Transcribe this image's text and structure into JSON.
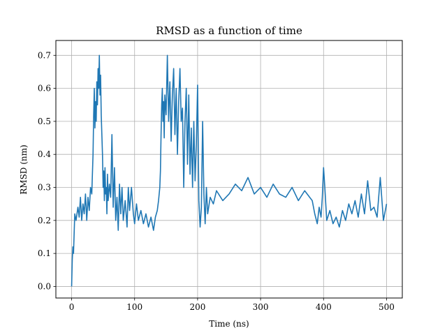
{
  "chart_data": {
    "type": "line",
    "title": "RMSD as a function of time",
    "xlabel": "Time (ns)",
    "ylabel": "RMSD (nm)",
    "xlim": [
      -25,
      525
    ],
    "ylim": [
      -0.035,
      0.745
    ],
    "xticks": [
      0,
      100,
      200,
      300,
      400,
      500
    ],
    "yticks": [
      0.0,
      0.1,
      0.2,
      0.3,
      0.4,
      0.5,
      0.6,
      0.7
    ],
    "xtick_labels": [
      "0",
      "100",
      "200",
      "300",
      "400",
      "500"
    ],
    "ytick_labels": [
      "0.0",
      "0.1",
      "0.2",
      "0.3",
      "0.4",
      "0.5",
      "0.6",
      "0.7"
    ],
    "grid": true,
    "series": [
      {
        "color": "#1f77b4",
        "x": [
          0,
          1,
          2,
          3,
          4,
          5,
          7,
          10,
          12,
          14,
          16,
          18,
          20,
          22,
          24,
          26,
          28,
          30,
          32,
          34,
          35,
          36,
          37,
          38,
          39,
          40,
          41,
          42,
          43,
          44,
          45,
          46,
          47,
          48,
          49,
          50,
          51,
          52,
          53,
          54,
          55,
          56,
          57,
          58,
          60,
          62,
          64,
          66,
          68,
          70,
          72,
          74,
          76,
          78,
          80,
          82,
          85,
          88,
          90,
          92,
          95,
          98,
          100,
          103,
          106,
          110,
          114,
          118,
          122,
          126,
          130,
          133,
          136,
          138,
          140,
          141,
          142,
          143,
          144,
          145,
          146,
          147,
          148,
          150,
          152,
          154,
          156,
          158,
          160,
          162,
          164,
          166,
          168,
          170,
          172,
          174,
          176,
          178,
          180,
          182,
          184,
          186,
          188,
          190,
          192,
          194,
          196,
          198,
          200,
          202,
          204,
          206,
          208,
          210,
          212,
          214,
          216,
          220,
          225,
          230,
          240,
          250,
          260,
          270,
          280,
          290,
          300,
          310,
          320,
          330,
          340,
          350,
          360,
          370,
          378,
          382,
          386,
          390,
          393,
          396,
          398,
          400,
          402,
          405,
          410,
          415,
          420,
          425,
          430,
          435,
          440,
          445,
          450,
          455,
          460,
          465,
          470,
          475,
          480,
          485,
          490,
          495,
          500
        ],
        "y": [
          0.0,
          0.08,
          0.12,
          0.1,
          0.16,
          0.22,
          0.2,
          0.24,
          0.21,
          0.27,
          0.2,
          0.25,
          0.22,
          0.28,
          0.2,
          0.27,
          0.23,
          0.3,
          0.28,
          0.4,
          0.52,
          0.6,
          0.48,
          0.56,
          0.5,
          0.62,
          0.55,
          0.66,
          0.6,
          0.7,
          0.58,
          0.64,
          0.52,
          0.46,
          0.4,
          0.3,
          0.35,
          0.26,
          0.36,
          0.28,
          0.3,
          0.22,
          0.34,
          0.26,
          0.31,
          0.27,
          0.46,
          0.24,
          0.36,
          0.2,
          0.27,
          0.17,
          0.31,
          0.22,
          0.3,
          0.2,
          0.26,
          0.18,
          0.3,
          0.23,
          0.3,
          0.22,
          0.19,
          0.25,
          0.2,
          0.23,
          0.19,
          0.22,
          0.18,
          0.21,
          0.17,
          0.21,
          0.23,
          0.26,
          0.3,
          0.35,
          0.46,
          0.55,
          0.6,
          0.5,
          0.56,
          0.45,
          0.58,
          0.52,
          0.7,
          0.5,
          0.62,
          0.44,
          0.58,
          0.66,
          0.46,
          0.6,
          0.4,
          0.56,
          0.66,
          0.5,
          0.54,
          0.3,
          0.5,
          0.6,
          0.37,
          0.58,
          0.34,
          0.48,
          0.3,
          0.5,
          0.32,
          0.43,
          0.61,
          0.26,
          0.18,
          0.24,
          0.5,
          0.28,
          0.19,
          0.3,
          0.22,
          0.27,
          0.25,
          0.29,
          0.26,
          0.28,
          0.31,
          0.29,
          0.33,
          0.28,
          0.3,
          0.27,
          0.31,
          0.28,
          0.27,
          0.3,
          0.26,
          0.29,
          0.27,
          0.26,
          0.22,
          0.19,
          0.24,
          0.21,
          0.27,
          0.36,
          0.3,
          0.2,
          0.23,
          0.19,
          0.21,
          0.18,
          0.23,
          0.2,
          0.25,
          0.22,
          0.26,
          0.21,
          0.28,
          0.22,
          0.32,
          0.23,
          0.24,
          0.21,
          0.33,
          0.2,
          0.25
        ]
      }
    ]
  }
}
